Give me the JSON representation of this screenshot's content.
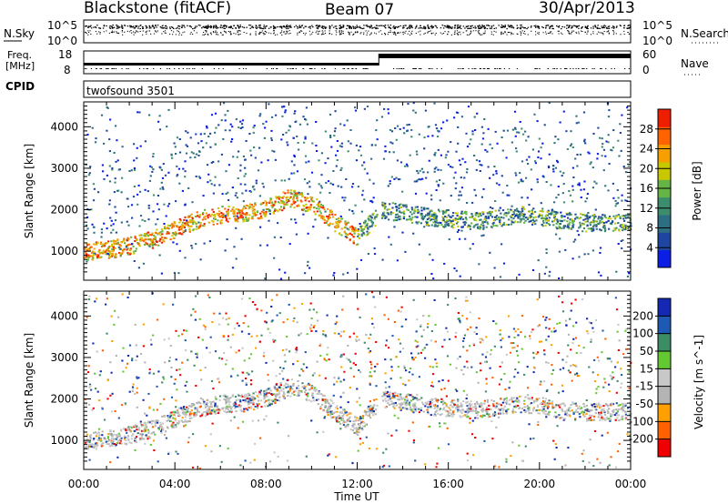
{
  "header": {
    "site": "Blackstone (fitACF)",
    "beam": "Beam 07",
    "date": "30/Apr/2013"
  },
  "noise_panel": {
    "left_label": "N.Sky",
    "right_label": "N.Search",
    "left_ticks": [
      "10^5",
      "10^0"
    ],
    "right_ticks": [
      "10^5",
      "10^0"
    ]
  },
  "freq_panel": {
    "left_label_1": "Freq.",
    "left_label_2": "[MHz]",
    "right_label": "Nave",
    "left_ticks": [
      "18",
      "8"
    ],
    "right_ticks": [
      "60",
      "0"
    ]
  },
  "cpid_panel": {
    "label": "CPID",
    "text": "twofsound 3501"
  },
  "x_axis": {
    "label": "Time UT",
    "tick_labels": [
      "00:00",
      "04:00",
      "08:00",
      "12:00",
      "16:00",
      "20:00",
      "00:00"
    ]
  },
  "colors": {
    "power_scale": [
      "#0a1ee6",
      "#1e46a0",
      "#2d6e82",
      "#3c8c6e",
      "#64b446",
      "#c8c800",
      "#f5a000",
      "#ff6400",
      "#f01e00"
    ],
    "velocity_scale": [
      "#f00000",
      "#ff6000",
      "#ffa000",
      "#b4b4b4",
      "#c8c8c8",
      "#64c832",
      "#3c8c64",
      "#1e5ab4",
      "#1428b4"
    ]
  },
  "chart_data": [
    {
      "type": "heatmap",
      "title": "",
      "xlabel": "",
      "ylabel": "Slant Range [km]",
      "xlim": [
        0,
        24
      ],
      "ylim": [
        300,
        4600
      ],
      "y_tick_labels": [
        "1000",
        "2000",
        "3000",
        "4000"
      ],
      "colorbar": {
        "label": "Power [dB]",
        "tick_labels": [
          "4",
          "8",
          "12",
          "16",
          "20",
          "24",
          "28"
        ],
        "range": [
          0,
          32
        ]
      },
      "main_band_x": [
        0,
        1,
        2,
        3,
        4,
        5,
        6,
        7,
        8,
        9,
        10,
        11,
        12,
        13,
        14,
        15,
        16,
        17,
        18,
        19,
        20,
        21,
        22,
        23,
        24
      ],
      "main_band_y": [
        1000,
        1050,
        1150,
        1300,
        1550,
        1780,
        1900,
        1920,
        2050,
        2300,
        2150,
        1700,
        1350,
        2000,
        1950,
        1850,
        1800,
        1750,
        1800,
        1900,
        1850,
        1750,
        1700,
        1700,
        1700
      ]
    },
    {
      "type": "heatmap",
      "title": "",
      "xlabel": "Time UT",
      "ylabel": "Slant Range [km]",
      "xlim": [
        0,
        24
      ],
      "ylim": [
        300,
        4600
      ],
      "y_tick_labels": [
        "1000",
        "2000",
        "3000",
        "4000"
      ],
      "colorbar": {
        "label": "Velocity [m s^-1]",
        "tick_labels": [
          "200",
          "100",
          "50",
          "15",
          "-15",
          "-50",
          "-100",
          "-200"
        ],
        "range": [
          -250,
          250
        ]
      },
      "main_band_x": [
        0,
        1,
        2,
        3,
        4,
        5,
        6,
        7,
        8,
        9,
        10,
        11,
        12,
        13,
        14,
        15,
        16,
        17,
        18,
        19,
        20,
        21,
        22,
        23,
        24
      ],
      "main_band_y": [
        1000,
        1050,
        1150,
        1300,
        1550,
        1780,
        1900,
        1920,
        2050,
        2300,
        2150,
        1700,
        1350,
        2000,
        1950,
        1850,
        1800,
        1750,
        1800,
        1900,
        1850,
        1750,
        1700,
        1700,
        1700
      ]
    }
  ]
}
